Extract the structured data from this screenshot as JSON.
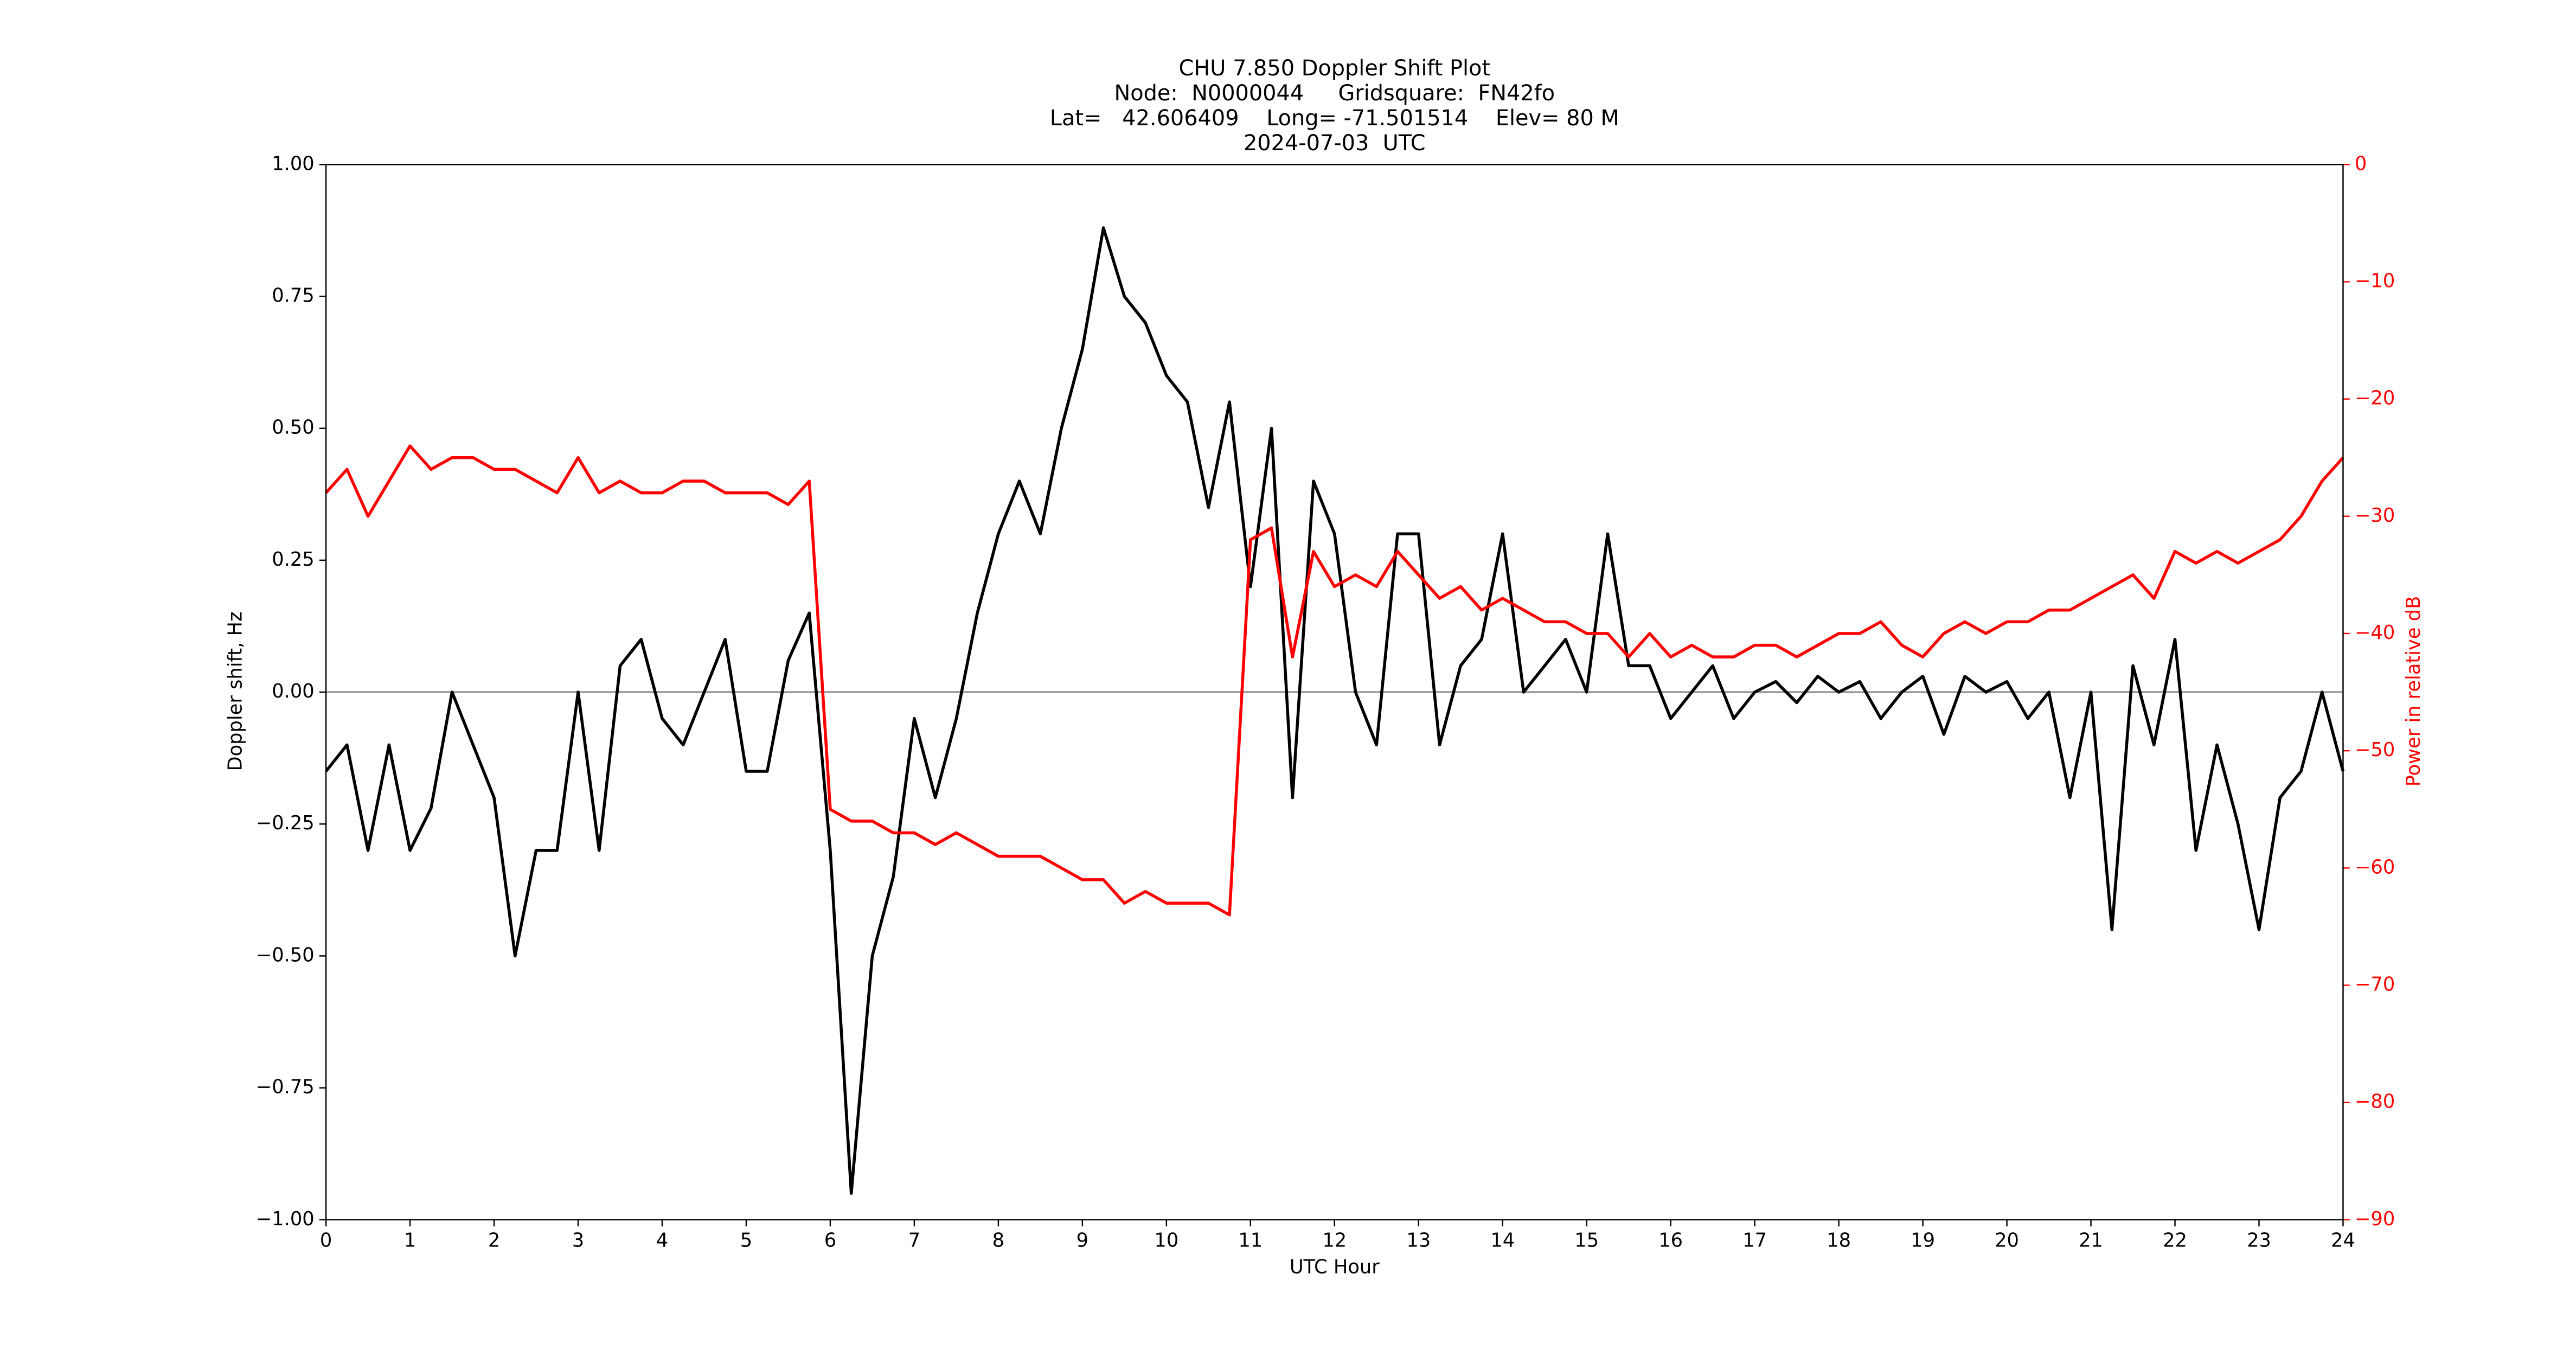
{
  "chart_data": {
    "type": "line",
    "title": "CHU 7.850 Doppler Shift Plot",
    "subtitle": [
      "Node:  N0000044     Gridsquare:  FN42fo",
      "Lat=   42.606409    Long= -71.501514    Elev= 80 M",
      "2024-07-03  UTC"
    ],
    "xlabel": "UTC Hour",
    "ylabel": "Doppler shift, Hz",
    "y2label": "Power in relative dB",
    "xlim": [
      0,
      24
    ],
    "xticks": [
      0,
      1,
      2,
      3,
      4,
      5,
      6,
      7,
      8,
      9,
      10,
      11,
      12,
      13,
      14,
      15,
      16,
      17,
      18,
      19,
      20,
      21,
      22,
      23,
      24
    ],
    "ylim": [
      -1,
      1
    ],
    "yticks": [
      {
        "value": -1,
        "label": "−1.00"
      },
      {
        "value": -0.75,
        "label": "−0.75"
      },
      {
        "value": -0.5,
        "label": "−0.50"
      },
      {
        "value": -0.25,
        "label": "−0.25"
      },
      {
        "value": 0,
        "label": "0.00"
      },
      {
        "value": 0.25,
        "label": "0.25"
      },
      {
        "value": 0.5,
        "label": "0.50"
      },
      {
        "value": 0.75,
        "label": "0.75"
      },
      {
        "value": 1,
        "label": "1.00"
      }
    ],
    "y2lim": [
      -90,
      0
    ],
    "y2ticks": [
      {
        "value": -90,
        "label": "−90"
      },
      {
        "value": -80,
        "label": "−80"
      },
      {
        "value": -70,
        "label": "−70"
      },
      {
        "value": -60,
        "label": "−60"
      },
      {
        "value": -50,
        "label": "−50"
      },
      {
        "value": -40,
        "label": "−40"
      },
      {
        "value": -30,
        "label": "−30"
      },
      {
        "value": -20,
        "label": "−20"
      },
      {
        "value": -10,
        "label": "−10"
      },
      0
    ],
    "y2color": "#ff0000",
    "hline": 0,
    "x": [
      0,
      0.25,
      0.5,
      0.75,
      1,
      1.25,
      1.5,
      1.75,
      2,
      2.25,
      2.5,
      2.75,
      3,
      3.25,
      3.5,
      3.75,
      4,
      4.25,
      4.5,
      4.75,
      5,
      5.25,
      5.5,
      5.75,
      6,
      6.25,
      6.5,
      6.75,
      7,
      7.25,
      7.5,
      7.75,
      8,
      8.25,
      8.5,
      8.75,
      9,
      9.25,
      9.5,
      9.75,
      10,
      10.25,
      10.5,
      10.75,
      11,
      11.25,
      11.5,
      11.75,
      12,
      12.25,
      12.5,
      12.75,
      13,
      13.25,
      13.5,
      13.75,
      14,
      14.25,
      14.5,
      14.75,
      15,
      15.25,
      15.5,
      15.75,
      16,
      16.25,
      16.5,
      16.75,
      17,
      17.25,
      17.5,
      17.75,
      18,
      18.25,
      18.5,
      18.75,
      19,
      19.25,
      19.5,
      19.75,
      20,
      20.25,
      20.5,
      20.75,
      21,
      21.25,
      21.5,
      21.75,
      22,
      22.25,
      22.5,
      22.75,
      23,
      23.25,
      23.5,
      23.75,
      24
    ],
    "series": [
      {
        "color": "#000000",
        "axis": "y",
        "values": [
          -0.15,
          -0.1,
          -0.3,
          -0.1,
          -0.3,
          -0.22,
          0.0,
          -0.1,
          -0.2,
          -0.5,
          -0.3,
          -0.3,
          0.0,
          -0.3,
          0.05,
          0.1,
          -0.05,
          -0.1,
          0.0,
          0.1,
          -0.15,
          -0.15,
          0.06,
          0.15,
          -0.3,
          -0.95,
          -0.5,
          -0.35,
          -0.05,
          -0.2,
          -0.05,
          0.15,
          0.3,
          0.4,
          0.3,
          0.5,
          0.65,
          0.88,
          0.75,
          0.7,
          0.6,
          0.55,
          0.35,
          0.55,
          0.2,
          0.5,
          -0.2,
          0.4,
          0.3,
          0.0,
          -0.1,
          0.3,
          0.3,
          -0.1,
          0.05,
          0.1,
          0.3,
          0.0,
          0.05,
          0.1,
          0.0,
          0.3,
          0.05,
          0.05,
          -0.05,
          0.0,
          0.05,
          -0.05,
          0.0,
          0.02,
          -0.02,
          0.03,
          0.0,
          0.02,
          -0.05,
          0.0,
          0.03,
          -0.08,
          0.03,
          0.0,
          0.02,
          -0.05,
          0.0,
          -0.2,
          0.0,
          -0.45,
          0.05,
          -0.1,
          0.1,
          -0.3,
          -0.1,
          -0.25,
          -0.45,
          -0.2,
          -0.15,
          0.0,
          -0.15
        ]
      },
      {
        "color": "#ff0000",
        "axis": "y2",
        "values": [
          -28,
          -26,
          -30,
          -27,
          -24,
          -26,
          -25,
          -25,
          -26,
          -26,
          -27,
          -28,
          -25,
          -28,
          -27,
          -28,
          -28,
          -27,
          -27,
          -28,
          -28,
          -28,
          -29,
          -27,
          -55,
          -56,
          -56,
          -57,
          -57,
          -58,
          -57,
          -58,
          -59,
          -59,
          -59,
          -60,
          -61,
          -61,
          -63,
          -62,
          -63,
          -63,
          -63,
          -64,
          -32,
          -31,
          -42,
          -33,
          -36,
          -35,
          -36,
          -33,
          -35,
          -37,
          -36,
          -38,
          -37,
          -38,
          -39,
          -39,
          -40,
          -40,
          -42,
          -40,
          -42,
          -41,
          -42,
          -42,
          -41,
          -41,
          -42,
          -41,
          -40,
          -40,
          -39,
          -41,
          -42,
          -40,
          -39,
          -40,
          -39,
          -39,
          -38,
          -38,
          -37,
          -36,
          -35,
          -37,
          -33,
          -34,
          -33,
          -34,
          -33,
          -32,
          -30,
          -27,
          -25
        ]
      }
    ]
  }
}
